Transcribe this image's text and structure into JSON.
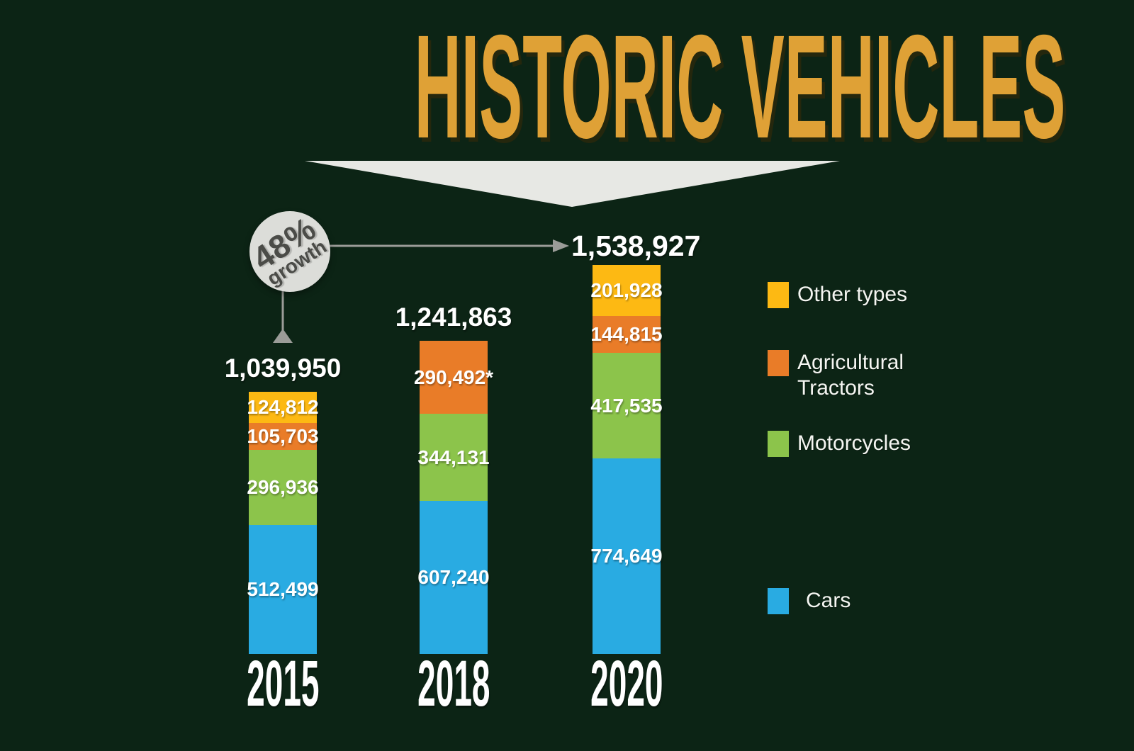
{
  "title": "HISTORIC VEHICLES",
  "annotation": {
    "badge_line1": "48%",
    "badge_line2": "growth",
    "target_total": "1,538,927"
  },
  "chart_data": {
    "type": "bar",
    "stacked": true,
    "title": "HISTORIC VEHICLES",
    "categories": [
      "2015",
      "2018",
      "2020"
    ],
    "stack_order_top_to_bottom": [
      "other",
      "tractors",
      "motorcycles",
      "cars"
    ],
    "series": [
      {
        "name": "Other types",
        "key": "other",
        "values": [
          124812,
          null,
          201928
        ],
        "labels": [
          "124,812",
          null,
          "201,928"
        ]
      },
      {
        "name": "Agricultural Tractors",
        "key": "tractors",
        "values": [
          105703,
          290492,
          144815
        ],
        "labels": [
          "105,703",
          "290,492*",
          "144,815"
        ]
      },
      {
        "name": "Motorcycles",
        "key": "motorcycles",
        "values": [
          296936,
          344131,
          417535
        ],
        "labels": [
          "296,936",
          "344,131",
          "417,535"
        ]
      },
      {
        "name": "Cars",
        "key": "cars",
        "values": [
          512499,
          607240,
          774649
        ],
        "labels": [
          "512,499",
          "607,240",
          "774,649"
        ]
      }
    ],
    "totals": [
      1039950,
      1241863,
      1538927
    ],
    "total_labels": [
      "1,039,950",
      "1,241,863",
      "1,538,927"
    ],
    "total_shown_above_bar": [
      true,
      true,
      false
    ],
    "annotations": {
      "growth": "48% growth",
      "growth_from": "2015",
      "growth_to": "2020"
    },
    "colors": {
      "other": "#fdb913",
      "tractors": "#e97c28",
      "motorcycles": "#8cc44b",
      "cars": "#29abe2",
      "background": "#0c2415",
      "title": "#dfa136",
      "connector_gray": "#9b9c98",
      "triangle_gray": "#e7e8e4",
      "badge_fill": "#dcddd9",
      "badge_text": "#4b4c48",
      "value_text": "#ffffff"
    },
    "legend_position": "right",
    "grid": false
  },
  "legend": {
    "items": [
      {
        "label": "Other types",
        "key": "other",
        "color": "#fdb913"
      },
      {
        "label": "Agricultural Tractors",
        "key": "tractors",
        "color": "#e97c28"
      },
      {
        "label": "Motorcycles",
        "key": "motorcycles",
        "color": "#8cc44b"
      },
      {
        "label": "Cars",
        "key": "cars",
        "color": "#29abe2"
      }
    ]
  }
}
